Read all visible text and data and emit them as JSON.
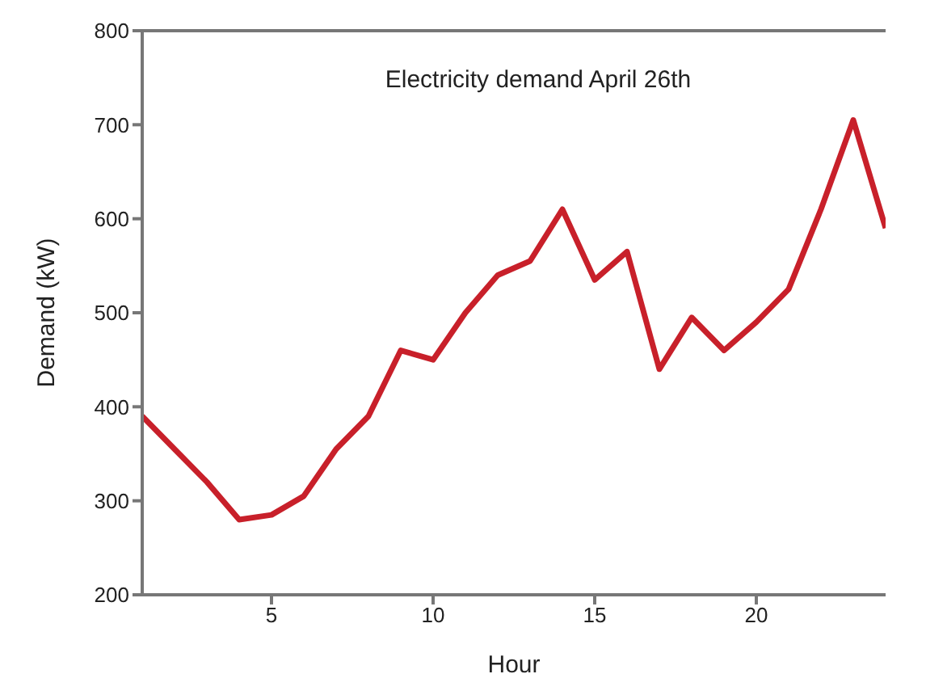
{
  "chart_data": {
    "type": "line",
    "title": "Electricity demand April 26th",
    "xlabel": "Hour",
    "ylabel": "Demand (kW)",
    "x": [
      1,
      2,
      3,
      4,
      5,
      6,
      7,
      8,
      9,
      10,
      11,
      12,
      13,
      14,
      15,
      16,
      17,
      18,
      19,
      20,
      21,
      22,
      23,
      24
    ],
    "series": [
      {
        "color": "#c8202a",
        "values": [
          390,
          355,
          320,
          280,
          285,
          305,
          355,
          390,
          460,
          450,
          500,
          540,
          555,
          610,
          535,
          565,
          440,
          495,
          460,
          490,
          525,
          610,
          705,
          590
        ]
      }
    ],
    "xlim": [
      1,
      24
    ],
    "xticks": [
      5,
      10,
      15,
      20
    ],
    "ylim": [
      200,
      800
    ],
    "yticks": [
      200,
      300,
      400,
      500,
      600,
      700,
      800
    ],
    "grid": false,
    "legend": false,
    "marker": "none",
    "line_style": "solid"
  }
}
